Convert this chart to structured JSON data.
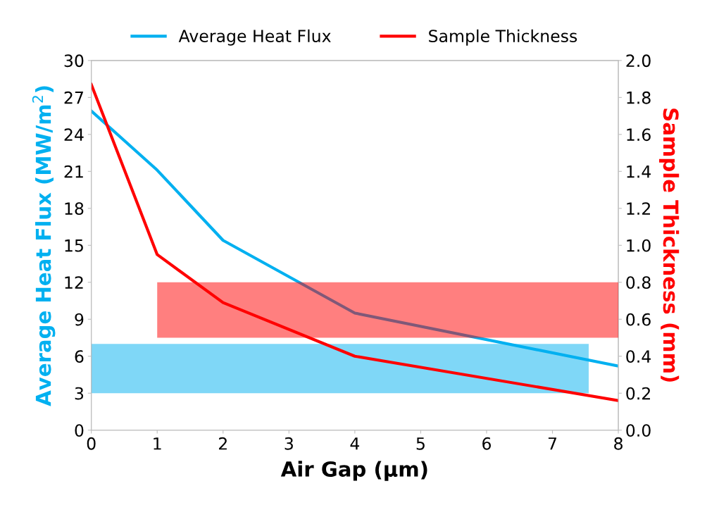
{
  "chart_data": {
    "type": "line",
    "xlabel": "Air Gap (µm)",
    "ylabel": "Average Heat Flux (MW/m$^{2}$)",
    "y2label": "Sample Thickness (mm)",
    "x": [
      0,
      1,
      2,
      4,
      8
    ],
    "series": [
      {
        "name": "Average Heat Flux",
        "color": "#00b0f0",
        "values": [
          25.9,
          21.1,
          15.4,
          9.5,
          5.2
        ]
      },
      {
        "name": "Sample Thickness",
        "color": "#ff0000",
        "axis": "y2",
        "values": [
          1.87,
          0.95,
          0.69,
          0.4,
          0.16
        ]
      },
      {
        "color": "#00b0f0",
        "x": [
          0,
          7.55
        ],
        "values": [
          null,
          null
        ],
        "lower": [
          3,
          3
        ],
        "upper": [
          7,
          7
        ]
      },
      {
        "color": "#ff0000",
        "axis": "y2",
        "x": [
          1,
          8
        ],
        "values": [
          null,
          null
        ],
        "lower": [
          0.5,
          0.5
        ],
        "upper": [
          0.8,
          0.8
        ]
      }
    ],
    "xlim": [
      0,
      8
    ],
    "xticks": [
      0,
      1,
      2,
      3,
      4,
      5,
      6,
      7,
      8
    ],
    "ylim": [
      0,
      30
    ],
    "yticks": [
      0,
      3,
      6,
      9,
      12,
      15,
      18,
      21,
      24,
      27,
      30
    ],
    "y2lim": [
      0,
      2
    ],
    "y2ticks": [
      {
        "value": 0,
        "label": "0.0"
      },
      {
        "value": 0.2,
        "label": "0.2"
      },
      {
        "value": 0.4,
        "label": "0.4"
      },
      {
        "value": 0.6,
        "label": "0.6"
      },
      {
        "value": 0.8,
        "label": "0.8"
      },
      {
        "value": 1.0,
        "label": "1.0"
      },
      {
        "value": 1.2,
        "label": "1.2"
      },
      {
        "value": 1.4,
        "label": "1.4"
      },
      {
        "value": 1.6,
        "label": "1.6"
      },
      {
        "value": 1.8,
        "label": "1.8"
      },
      {
        "value": 2.0,
        "label": "2.0"
      }
    ],
    "legend": "top",
    "grid": false,
    "marker": "none",
    "line_style": "solid"
  }
}
